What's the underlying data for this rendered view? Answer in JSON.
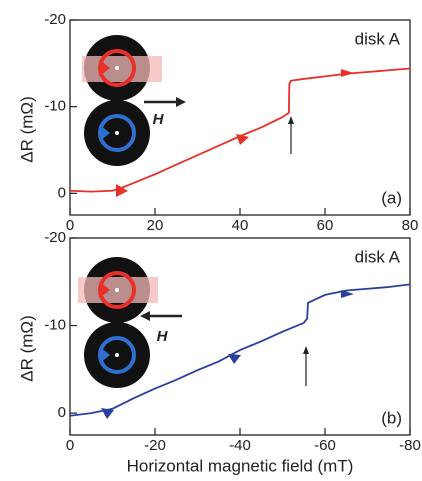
{
  "chart_data": [
    {
      "type": "line",
      "annotation": "disk A",
      "panel_label": "(a)",
      "field_label": "H",
      "ylabel": "ΔR (mΩ)",
      "x": [
        0,
        5,
        10,
        12,
        15,
        20,
        25,
        30,
        35,
        40,
        45,
        50,
        51.5,
        51.6,
        52,
        55,
        60,
        65,
        70,
        75,
        80
      ],
      "values": [
        -0.3,
        -0.2,
        -0.3,
        -0.6,
        -1.2,
        -2.2,
        -3.3,
        -4.4,
        -5.5,
        -6.6,
        -7.6,
        -8.8,
        -9.3,
        -12.6,
        -13,
        -13.2,
        -13.5,
        -13.8,
        -14,
        -14.2,
        -14.4
      ],
      "color": "#e8302a",
      "xlim": [
        0,
        80
      ],
      "xticks": [
        0,
        20,
        40,
        60,
        80
      ],
      "ylim": [
        2.5,
        -20
      ],
      "yticks": [
        -20,
        -10,
        0
      ]
    },
    {
      "type": "line",
      "annotation": "disk A",
      "panel_label": "(b)",
      "field_label": "H",
      "ylabel": "ΔR (mΩ)",
      "xlabel": "Horizontal magnetic field  (mT)",
      "x": [
        0,
        -5,
        -10,
        -15,
        -20,
        -25,
        -30,
        -35,
        -40,
        -45,
        -50,
        -55,
        -55.8,
        -56,
        -60,
        -65,
        -70,
        -75,
        -80
      ],
      "values": [
        0.3,
        0,
        -0.5,
        -1.7,
        -2.8,
        -3.8,
        -4.9,
        -5.9,
        -7.2,
        -8.2,
        -9.3,
        -10.3,
        -10.8,
        -12.6,
        -13.5,
        -14,
        -14.2,
        -14.4,
        -14.7
      ],
      "color": "#2a3f9e",
      "xlim": [
        0,
        -80
      ],
      "xticks": [
        0,
        -20,
        -40,
        -60,
        -80
      ],
      "ylim": [
        2.5,
        -20
      ],
      "yticks": [
        -20,
        -10,
        0
      ]
    }
  ]
}
